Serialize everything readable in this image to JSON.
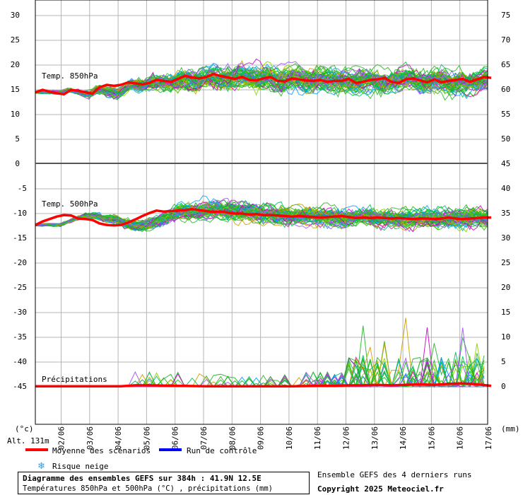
{
  "chart_data": [
    {
      "type": "line",
      "panel": "temp850",
      "label": "Temp. 850hPa",
      "ylim": [
        0,
        35
      ],
      "yticks_left": [
        0,
        5,
        10,
        15,
        20,
        25,
        30
      ],
      "right_axis_ticks": [
        50,
        55,
        60,
        65,
        70,
        75
      ],
      "x_dates": [
        "02/06",
        "03/06",
        "04/06",
        "05/06",
        "06/06",
        "07/06",
        "08/06",
        "09/06",
        "10/06",
        "11/06",
        "12/06",
        "13/06",
        "14/06",
        "15/06",
        "16/06",
        "17/06"
      ],
      "series": [
        {
          "name": "Moyenne des scénarios",
          "color": "#ff0000",
          "x": [
            0,
            0.25,
            0.5,
            0.75,
            1,
            1.25,
            1.5,
            1.75,
            2,
            2.25,
            2.5,
            2.75,
            3,
            3.25,
            3.5,
            3.75,
            4,
            4.25,
            4.5,
            4.75,
            5,
            5.25,
            5.5,
            5.75,
            6,
            6.25,
            6.5,
            6.75,
            7,
            7.25,
            7.5,
            7.75,
            8,
            8.25,
            8.5,
            8.75,
            9,
            9.25,
            9.5,
            9.75,
            10,
            10.25,
            10.5,
            10.75,
            11,
            11.25,
            11.5,
            11.75,
            12,
            12.25,
            12.5,
            12.75,
            13,
            13.25,
            13.5,
            13.75,
            14,
            14.25,
            14.5,
            14.75,
            15,
            15.25,
            15.5,
            15.75,
            16
          ],
          "values": [
            14.5,
            15.0,
            14.6,
            14.3,
            14.1,
            15.0,
            14.8,
            14.5,
            14.2,
            15.5,
            16.0,
            15.8,
            16.0,
            16.5,
            16.3,
            16.1,
            16.4,
            17.0,
            16.8,
            16.6,
            17.2,
            17.8,
            17.5,
            17.3,
            17.6,
            18.2,
            17.8,
            17.5,
            17.2,
            17.6,
            17.0,
            16.9,
            17.3,
            17.6,
            16.8,
            16.7,
            17.3,
            17.1,
            16.9,
            16.8,
            17.0,
            16.6,
            16.8,
            16.8,
            17.2,
            16.4,
            16.6,
            17.0,
            17.1,
            17.4,
            16.6,
            16.4,
            17.1,
            17.3,
            16.9,
            16.5,
            17.1,
            16.5,
            16.8,
            17.0,
            17.2,
            16.6,
            17.1,
            17.6,
            17.4
          ]
        }
      ]
    },
    {
      "type": "line",
      "panel": "temp500",
      "label": "Temp. 500hPa",
      "ylim": [
        -50,
        0
      ],
      "yticks_left": [
        -45,
        -40,
        -35,
        -30,
        -25,
        -20,
        -15,
        -10,
        -5,
        0
      ],
      "x_dates": [
        "02/06",
        "03/06",
        "04/06",
        "05/06",
        "06/06",
        "07/06",
        "08/06",
        "09/06",
        "10/06",
        "11/06",
        "12/06",
        "13/06",
        "14/06",
        "15/06",
        "16/06",
        "17/06"
      ],
      "series": [
        {
          "name": "Moyenne des scénarios",
          "color": "#ff0000",
          "x": [
            0,
            0.25,
            0.5,
            0.75,
            1,
            1.25,
            1.5,
            1.75,
            2,
            2.25,
            2.5,
            2.75,
            3,
            3.25,
            3.5,
            3.75,
            4,
            4.25,
            4.5,
            4.75,
            5,
            5.25,
            5.5,
            5.75,
            6,
            6.25,
            6.5,
            6.75,
            7,
            7.25,
            7.5,
            7.75,
            8,
            8.25,
            8.5,
            8.75,
            9,
            9.25,
            9.5,
            9.75,
            10,
            10.25,
            10.5,
            10.75,
            11,
            11.25,
            11.5,
            11.75,
            12,
            12.25,
            12.5,
            12.75,
            13,
            13.25,
            13.5,
            13.75,
            14,
            14.25,
            14.5,
            14.75,
            15,
            15.25,
            15.5,
            15.75,
            16
          ],
          "values": [
            -12.3,
            -11.6,
            -11.1,
            -10.6,
            -10.3,
            -10.4,
            -11.0,
            -11.1,
            -11.3,
            -12.0,
            -12.3,
            -12.4,
            -12.3,
            -11.8,
            -11.2,
            -10.5,
            -9.9,
            -9.4,
            -9.6,
            -9.5,
            -9.4,
            -9.3,
            -9.1,
            -9.3,
            -9.5,
            -9.7,
            -9.6,
            -9.8,
            -10.0,
            -10.0,
            -10.2,
            -10.1,
            -10.3,
            -10.3,
            -10.4,
            -10.5,
            -10.6,
            -10.5,
            -10.6,
            -10.7,
            -10.8,
            -10.7,
            -10.6,
            -10.5,
            -10.7,
            -10.9,
            -10.8,
            -10.9,
            -10.8,
            -10.9,
            -11.0,
            -10.9,
            -11.0,
            -11.1,
            -11.0,
            -11.0,
            -11.1,
            -11.0,
            -10.8,
            -11.0,
            -11.1,
            -11.0,
            -10.9,
            -10.8,
            -10.8
          ]
        }
      ]
    },
    {
      "type": "line",
      "panel": "precip",
      "label": "Précipitations",
      "ylim": [
        -5,
        45
      ],
      "yticks_right": [
        0,
        5,
        10,
        15,
        20,
        25,
        30,
        35,
        40,
        45
      ],
      "x_dates": [
        "02/06",
        "03/06",
        "04/06",
        "05/06",
        "06/06",
        "07/06",
        "08/06",
        "09/06",
        "10/06",
        "11/06",
        "12/06",
        "13/06",
        "14/06",
        "15/06",
        "16/06",
        "17/06"
      ],
      "series": [
        {
          "name": "Moyenne des scénarios",
          "color": "#ff0000",
          "x": [
            0,
            1,
            2,
            3,
            3.5,
            4,
            5,
            6,
            7,
            8,
            9,
            10,
            10.5,
            11,
            11.5,
            12,
            12.5,
            13,
            13.5,
            14,
            14.5,
            15,
            15.5,
            16
          ],
          "values": [
            0.1,
            0.1,
            0.1,
            0.1,
            0.3,
            0.3,
            0.2,
            0.1,
            0.1,
            0.1,
            0.1,
            0.2,
            0.2,
            0.3,
            0.3,
            0.4,
            0.3,
            0.4,
            0.5,
            0.4,
            0.6,
            0.7,
            0.5,
            0.2
          ]
        }
      ]
    }
  ],
  "axis_labels": {
    "left_unit": "(°c)",
    "right_unit": "(mm)",
    "altitude": "Alt. 131m"
  },
  "legend": {
    "mean_label": "Moyenne des scénarios",
    "mean_color": "#ff0000",
    "control_label": "Run de contrôle",
    "control_color": "#0000ff",
    "snow_label": "Risque neige",
    "snow_icon": "snowflake-icon"
  },
  "footer": {
    "title": "Diagramme des ensembles GEFS sur 384h : 41.9N 12.5E",
    "subtitle": "Températures 850hPa et 500hPa (°C) , précipitations (mm)",
    "runs": "Ensemble GEFS des 4 derniers runs",
    "copyright": "Copyright 2025 Meteociel.fr"
  }
}
